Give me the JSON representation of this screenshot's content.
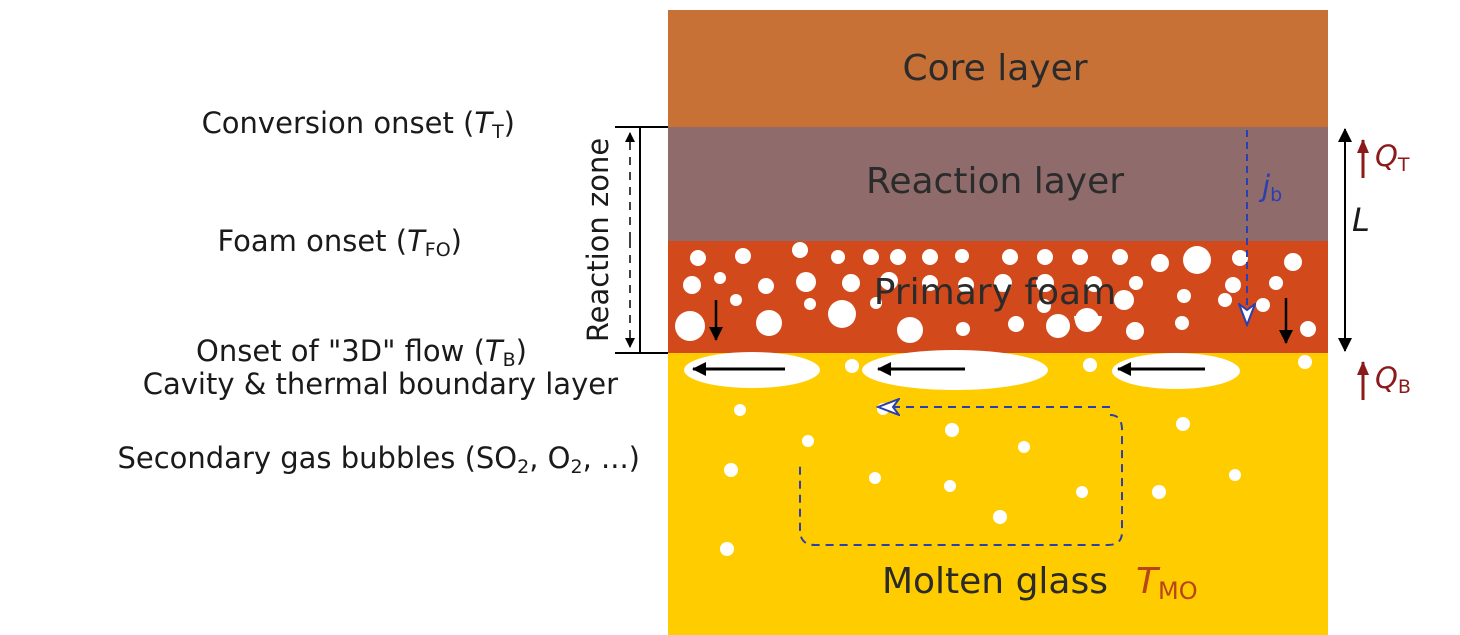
{
  "layers": {
    "core": "Core layer",
    "reaction": "Reaction layer",
    "foam": "Primary foam",
    "glass": "Molten glass"
  },
  "glass_temperature": {
    "symbol": "T",
    "subscript": "MO"
  },
  "left_labels": [
    {
      "text": "Conversion onset (",
      "symbol": "T",
      "subscript": "T",
      "suffix": ")"
    },
    {
      "text": "Foam onset (",
      "symbol": "T",
      "subscript": "FO",
      "suffix": ")"
    },
    {
      "text": "Onset of \"3D\" flow (",
      "symbol": "T",
      "subscript": "B",
      "suffix": ")"
    }
  ],
  "cavity_label": "Cavity & thermal boundary layer",
  "bubbles_label": {
    "text": "Secondary gas bubbles (SO",
    "sub1": "2",
    "mid": ", O",
    "sub2": "2",
    "suffix": ", ...)"
  },
  "reaction_zone": "Reaction zone",
  "flux": {
    "symbol": "j",
    "subscript": "b"
  },
  "heat_top": {
    "symbol": "Q",
    "subscript": "T"
  },
  "heat_bottom": {
    "symbol": "Q",
    "subscript": "B"
  },
  "thickness": "L"
}
